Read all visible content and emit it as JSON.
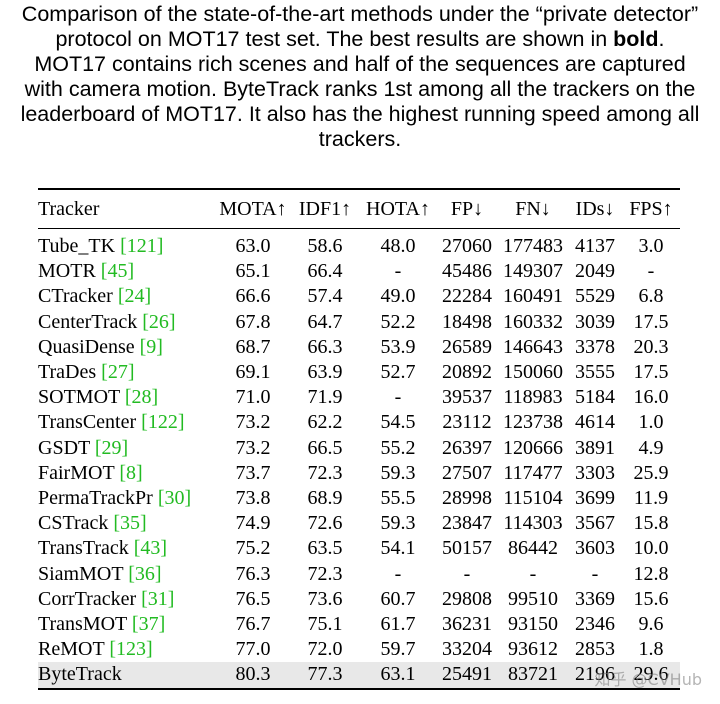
{
  "caption": {
    "line1": "Comparison of the state-of-the-art methods under the “private detector”",
    "line2_pre": "protocol on MOT17 test set. The best results are shown in ",
    "line2_bold": "bold",
    "line2_post": ".",
    "line3": "MOT17 contains rich scenes and half of the sequences are captured",
    "line4": "with camera motion. ByteTrack ranks 1st among all the trackers on the",
    "line5": "leaderboard of MOT17. It also has the highest running speed among all",
    "line6": "trackers."
  },
  "table": {
    "headers": [
      "Tracker",
      "MOTA↑",
      "IDF1↑",
      "HOTA↑",
      "FP↓",
      "FN↓",
      "IDs↓",
      "FPS↑"
    ],
    "rows": [
      {
        "name": "Tube_TK ",
        "ref": "[121]",
        "mota": "63.0",
        "idf1": "58.6",
        "hota": "48.0",
        "fp": "27060",
        "fn": "177483",
        "ids": "4137",
        "fps": "3.0"
      },
      {
        "name": "MOTR ",
        "ref": "[45]",
        "mota": "65.1",
        "idf1": "66.4",
        "hota": "-",
        "fp": "45486",
        "fn": "149307",
        "ids": "2049",
        "fps": "-"
      },
      {
        "name": "CTracker ",
        "ref": "[24]",
        "mota": "66.6",
        "idf1": "57.4",
        "hota": "49.0",
        "fp": "22284",
        "fn": "160491",
        "ids": "5529",
        "fps": "6.8"
      },
      {
        "name": "CenterTrack ",
        "ref": "[26]",
        "mota": "67.8",
        "idf1": "64.7",
        "hota": "52.2",
        "fp": "18498",
        "fn": "160332",
        "ids": "3039",
        "fps": "17.5"
      },
      {
        "name": "QuasiDense ",
        "ref": "[9]",
        "mota": "68.7",
        "idf1": "66.3",
        "hota": "53.9",
        "fp": "26589",
        "fn": "146643",
        "ids": "3378",
        "fps": "20.3"
      },
      {
        "name": "TraDes ",
        "ref": "[27]",
        "mota": "69.1",
        "idf1": "63.9",
        "hota": "52.7",
        "fp": "20892",
        "fn": "150060",
        "ids": "3555",
        "fps": "17.5"
      },
      {
        "name": "SOTMOT ",
        "ref": "[28]",
        "mota": "71.0",
        "idf1": "71.9",
        "hota": "-",
        "fp": "39537",
        "fn": "118983",
        "ids": "5184",
        "fps": "16.0"
      },
      {
        "name": "TransCenter ",
        "ref": "[122]",
        "mota": "73.2",
        "idf1": "62.2",
        "hota": "54.5",
        "fp": "23112",
        "fn": "123738",
        "ids": "4614",
        "fps": "1.0"
      },
      {
        "name": "GSDT ",
        "ref": "[29]",
        "mota": "73.2",
        "idf1": "66.5",
        "hota": "55.2",
        "fp": "26397",
        "fn": "120666",
        "ids": "3891",
        "fps": "4.9"
      },
      {
        "name": "FairMOT ",
        "ref": "[8]",
        "mota": "73.7",
        "idf1": "72.3",
        "hota": "59.3",
        "fp": "27507",
        "fn": "117477",
        "ids": "3303",
        "fps": "25.9"
      },
      {
        "name": "PermaTrackPr ",
        "ref": "[30]",
        "mota": "73.8",
        "idf1": "68.9",
        "hota": "55.5",
        "fp": "28998",
        "fn": "115104",
        "ids": "3699",
        "fps": "11.9"
      },
      {
        "name": "CSTrack ",
        "ref": "[35]",
        "mota": "74.9",
        "idf1": "72.6",
        "hota": "59.3",
        "fp": "23847",
        "fn": "114303",
        "ids": "3567",
        "fps": "15.8"
      },
      {
        "name": "TransTrack ",
        "ref": "[43]",
        "mota": "75.2",
        "idf1": "63.5",
        "hota": "54.1",
        "fp": "50157",
        "fn": "86442",
        "ids": "3603",
        "fps": "10.0"
      },
      {
        "name": "SiamMOT ",
        "ref": "[36]",
        "mota": "76.3",
        "idf1": "72.3",
        "hota": "-",
        "fp": "-",
        "fn": "-",
        "ids": "-",
        "fps": "12.8"
      },
      {
        "name": "CorrTracker ",
        "ref": "[31]",
        "mota": "76.5",
        "idf1": "73.6",
        "hota": "60.7",
        "fp": "29808",
        "fn": "99510",
        "ids": "3369",
        "fps": "15.6"
      },
      {
        "name": "TransMOT ",
        "ref": "[37]",
        "mota": "76.7",
        "idf1": "75.1",
        "hota": "61.7",
        "fp": "36231",
        "fn": "93150",
        "ids": "2346",
        "fps": "9.6"
      },
      {
        "name": "ReMOT ",
        "ref": "[123]",
        "mota": "77.0",
        "idf1": "72.0",
        "hota": "59.7",
        "fp": "33204",
        "fn": "93612",
        "ids": "2853",
        "fps": "1.8"
      },
      {
        "name": "ByteTrack",
        "ref": "",
        "mota": "80.3",
        "idf1": "77.3",
        "hota": "63.1",
        "fp": "25491",
        "fn": "83721",
        "ids": "2196",
        "fps": "29.6"
      }
    ]
  },
  "watermark": "知乎 @CVHub"
}
